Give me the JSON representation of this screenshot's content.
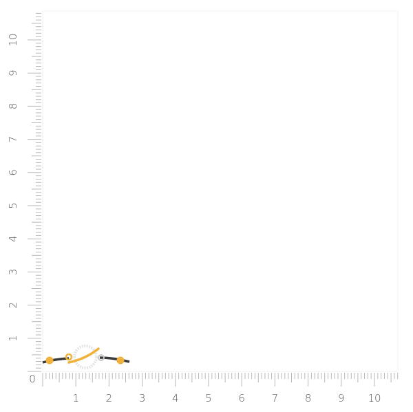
{
  "ruler": {
    "unit_count": 10,
    "x_labels": [
      "0",
      "1",
      "2",
      "3",
      "4",
      "5",
      "6",
      "7",
      "8",
      "9",
      "10"
    ],
    "y_labels": [
      "1",
      "2",
      "3",
      "4",
      "5",
      "6",
      "7",
      "8",
      "9",
      "10"
    ],
    "tick_color": "#b8b8b8",
    "label_color": "#555555"
  },
  "product": {
    "icon": "bracelet-planet-charm",
    "cord_color": "#3a3a3a",
    "gold_color": "#f0b23a",
    "stone_color": "#e4e4e4"
  }
}
